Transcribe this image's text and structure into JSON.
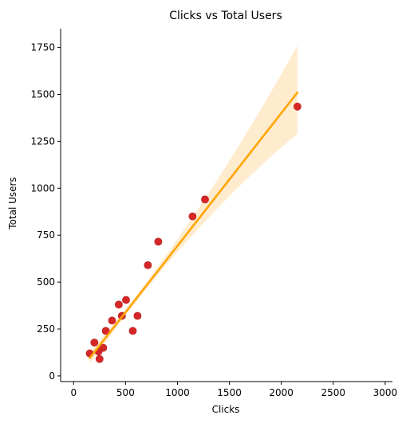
{
  "chart_data": {
    "type": "scatter",
    "title": "Clicks vs Total Users",
    "xlabel": "Clicks",
    "ylabel": "Total Users",
    "xlim": [
      -125,
      3070
    ],
    "ylim": [
      -30,
      1850
    ],
    "x_ticks": [
      0,
      500,
      1000,
      1500,
      2000,
      2500,
      3000
    ],
    "y_ticks": [
      0,
      250,
      500,
      750,
      1000,
      1250,
      1500,
      1750
    ],
    "grid": false,
    "points": [
      {
        "x": 155,
        "y": 120
      },
      {
        "x": 200,
        "y": 178
      },
      {
        "x": 240,
        "y": 130
      },
      {
        "x": 250,
        "y": 90
      },
      {
        "x": 285,
        "y": 150
      },
      {
        "x": 310,
        "y": 240
      },
      {
        "x": 370,
        "y": 295
      },
      {
        "x": 435,
        "y": 380
      },
      {
        "x": 465,
        "y": 320
      },
      {
        "x": 505,
        "y": 405
      },
      {
        "x": 570,
        "y": 240
      },
      {
        "x": 615,
        "y": 320
      },
      {
        "x": 715,
        "y": 590
      },
      {
        "x": 815,
        "y": 715
      },
      {
        "x": 1145,
        "y": 850
      },
      {
        "x": 1265,
        "y": 940
      },
      {
        "x": 2155,
        "y": 1435
      }
    ],
    "regression": {
      "x_start": 155,
      "x_end": 2155,
      "y_start": 95,
      "y_end": 1510,
      "ci_lower_end": 1290,
      "ci_upper_end": 1760,
      "ci_start_halfwidth": 30,
      "ci_min_halfwidth": 15,
      "ci_min_at_x": 520
    },
    "colors": {
      "points": "#d62728",
      "line": "#ffa500",
      "band": "#ffe8c4",
      "axis": "#000000"
    }
  }
}
